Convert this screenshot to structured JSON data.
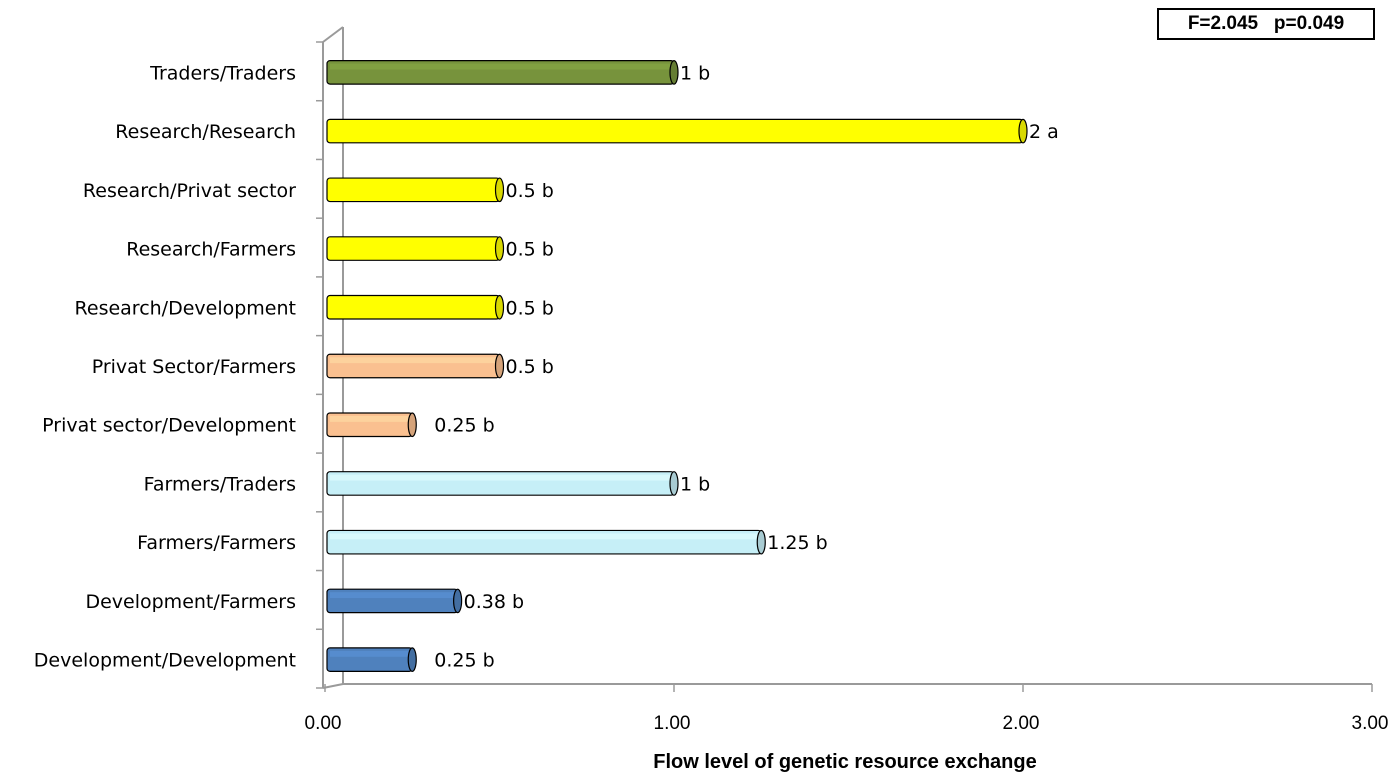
{
  "stats": "F=2.045   p=0.049",
  "chart_data": {
    "type": "bar",
    "orientation": "horizontal",
    "xlabel": "Flow level of genetic resource exchange",
    "xlim": [
      0,
      3
    ],
    "xticks": [
      "0.00",
      "1.00",
      "2.00",
      "3.00"
    ],
    "categories": [
      "Traders/Traders",
      "Research/Research",
      "Research/Privat sector",
      "Research/Farmers",
      "Research/Development",
      "Privat Sector/Farmers",
      "Privat sector/Development",
      "Farmers/Traders",
      "Farmers/Farmers",
      "Development/Farmers",
      "Development/Development"
    ],
    "values": [
      1,
      2,
      0.5,
      0.5,
      0.5,
      0.5,
      0.25,
      1,
      1.25,
      0.38,
      0.25
    ],
    "labels": [
      "1 b",
      "2 a",
      "0.5 b",
      "0.5 b",
      "0.5 b",
      "0.5 b",
      "0.25 b",
      "1 b",
      "1.25 b",
      "0.38 b",
      "0.25 b"
    ],
    "colors": [
      "#77933C",
      "#FFFF00",
      "#FFFF00",
      "#FFFF00",
      "#FFFF00",
      "#FAC090",
      "#FAC090",
      "#C6EFF7",
      "#C6EFF7",
      "#4F81BD",
      "#4F81BD"
    ],
    "grid": false,
    "legend": "none"
  }
}
